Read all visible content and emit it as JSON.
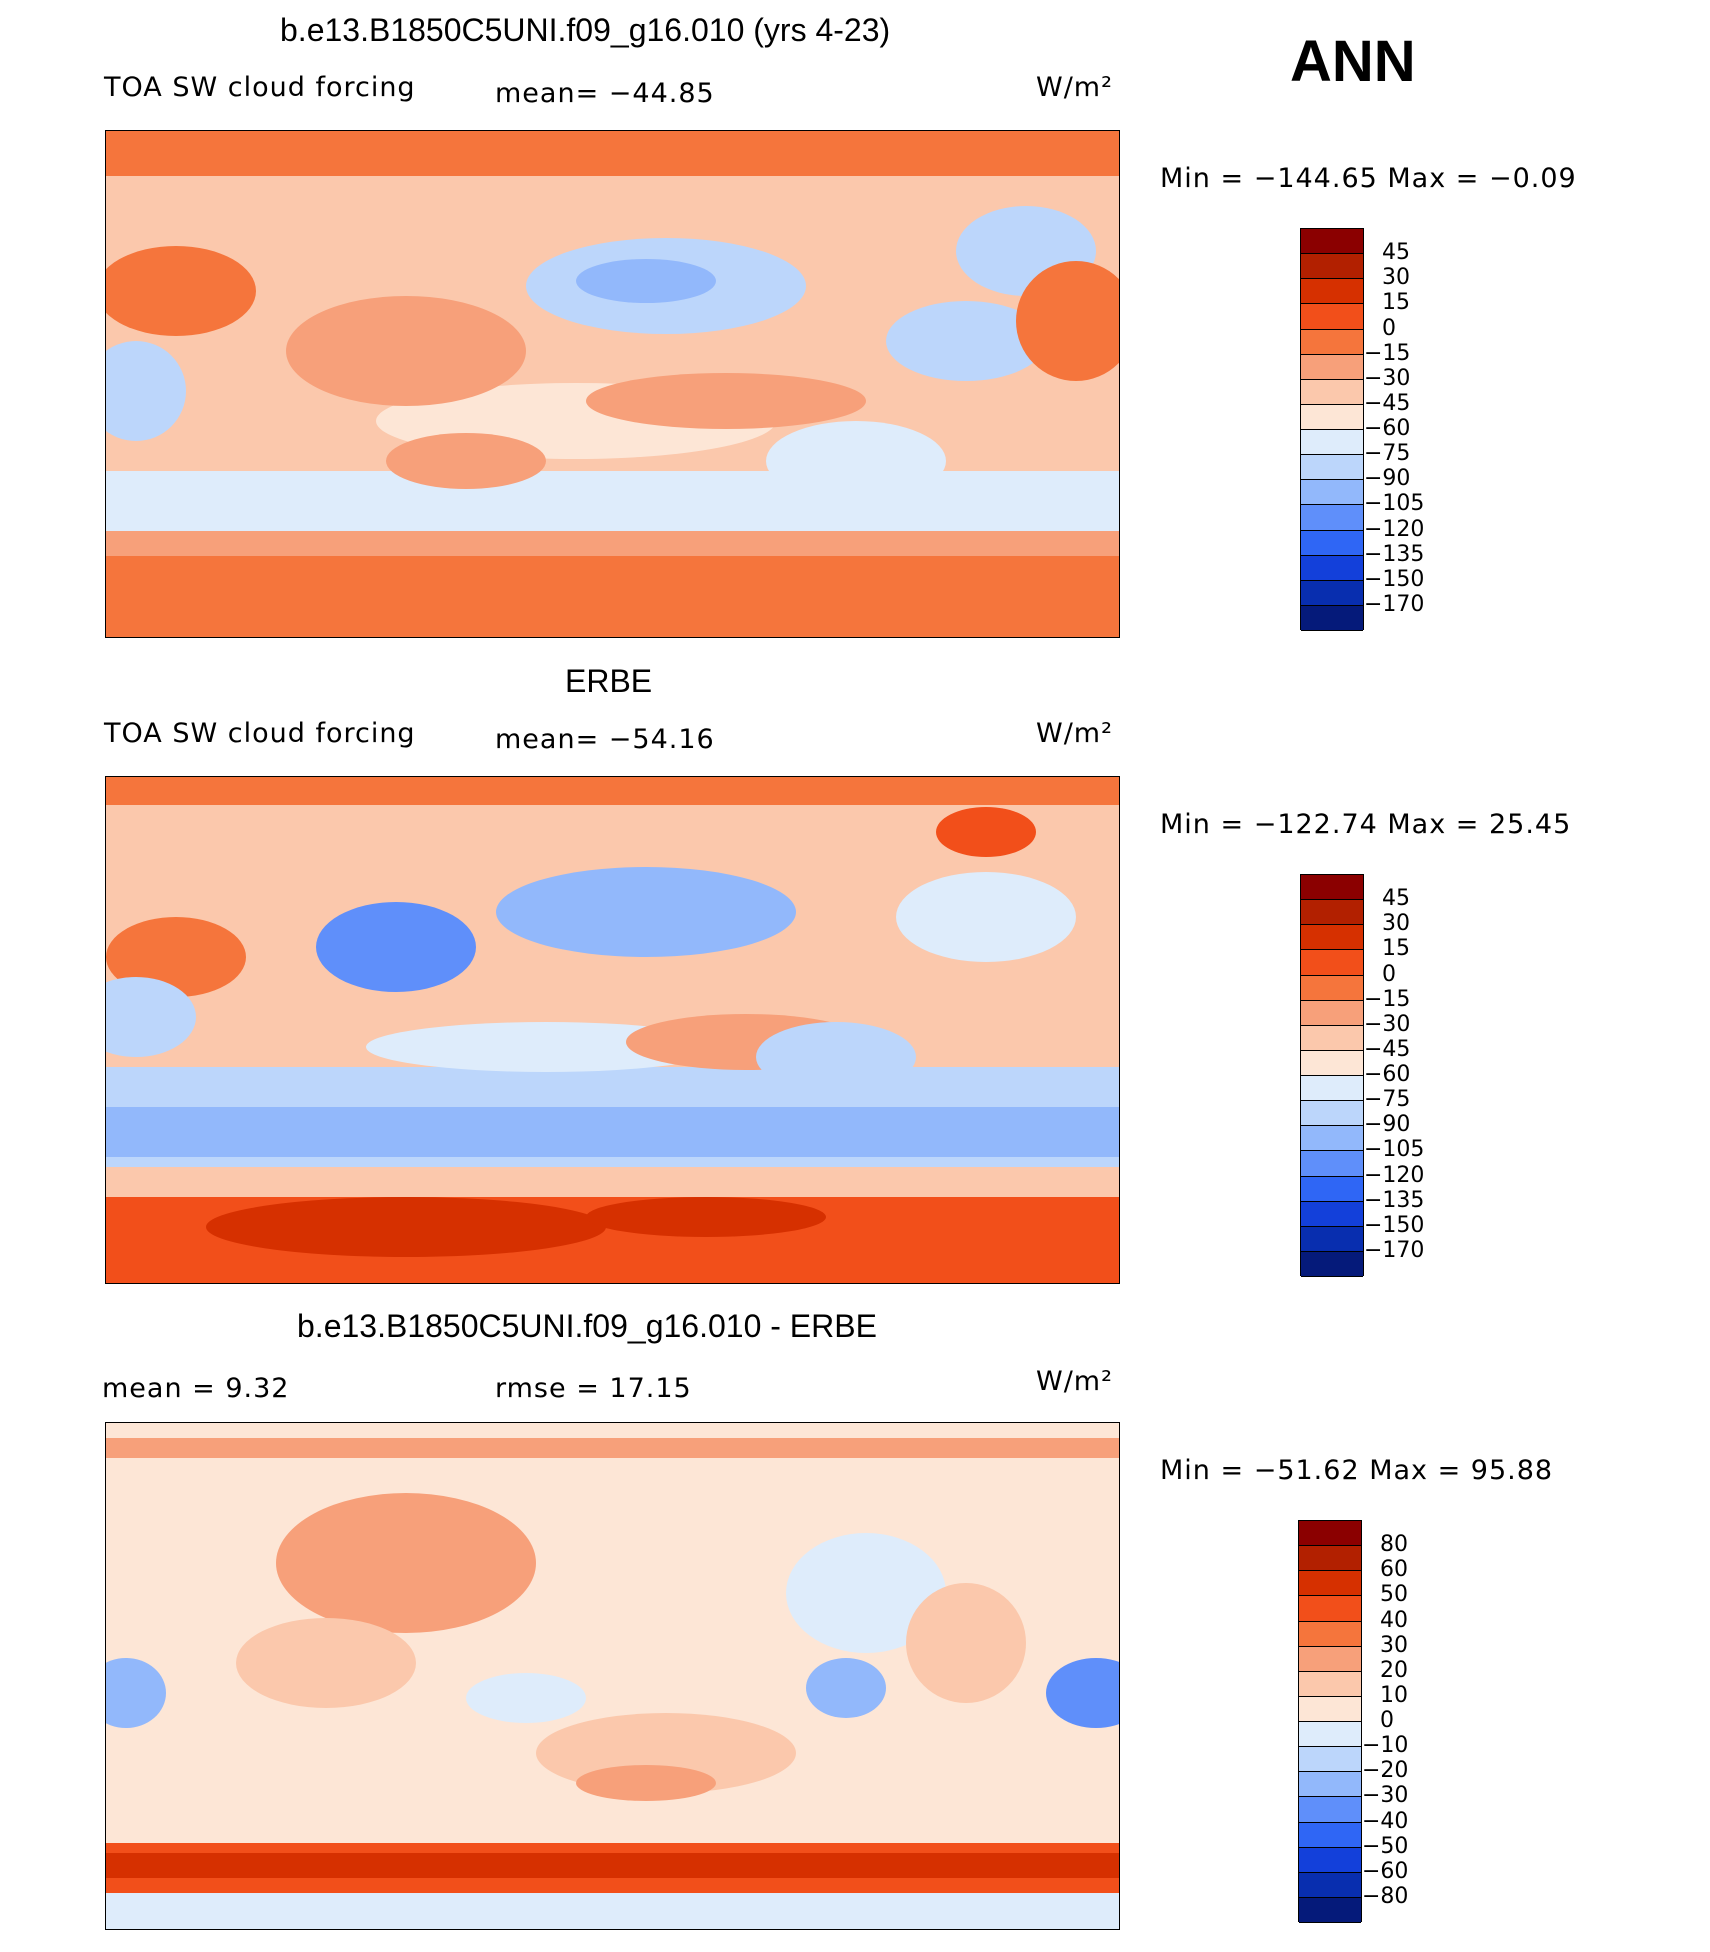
{
  "chart_data": [
    {
      "type": "heatmap",
      "title": "b.e13.B1850C5UNI.f09_g16.010 (yrs 4-23)",
      "variable": "TOA SW cloud forcing",
      "stat_left": "mean=  −44.85",
      "stat_right": "",
      "units": "W/m²",
      "minmax": "Min  =  −144.65  Max  =    −0.09",
      "levels": [
        "45",
        "30",
        "15",
        "0",
        "−15",
        "−30",
        "−45",
        "−60",
        "−75",
        "−90",
        "−105",
        "−120",
        "−135",
        "−150",
        "−170"
      ],
      "colors": [
        "#8b0000",
        "#b22000",
        "#d63000",
        "#f24f1a",
        "#f5753c",
        "#f7a07a",
        "#fbc8ac",
        "#fde6d6",
        "#deecfb",
        "#bcd6fb",
        "#92b8fb",
        "#5f8ffa",
        "#2f66f5",
        "#1340da",
        "#082eaf",
        "#051a7a"
      ]
    },
    {
      "type": "heatmap",
      "title": "ERBE",
      "variable": "TOA SW cloud forcing",
      "stat_left": "mean=  −54.16",
      "stat_right": "",
      "units": "W/m²",
      "minmax": "Min  =  −122.74  Max  =    25.45",
      "levels": [
        "45",
        "30",
        "15",
        "0",
        "−15",
        "−30",
        "−45",
        "−60",
        "−75",
        "−90",
        "−105",
        "−120",
        "−135",
        "−150",
        "−170"
      ],
      "colors": [
        "#8b0000",
        "#b22000",
        "#d63000",
        "#f24f1a",
        "#f5753c",
        "#f7a07a",
        "#fbc8ac",
        "#fde6d6",
        "#deecfb",
        "#bcd6fb",
        "#92b8fb",
        "#5f8ffa",
        "#2f66f5",
        "#1340da",
        "#082eaf",
        "#051a7a"
      ]
    },
    {
      "type": "heatmap",
      "title": "b.e13.B1850C5UNI.f09_g16.010 - ERBE",
      "variable": "mean  =      9.32",
      "stat_left": "rmse  =     17.15",
      "stat_right": "",
      "units": "W/m²",
      "minmax": "Min  =  −51.62  Max  =    95.88",
      "levels": [
        "80",
        "60",
        "50",
        "40",
        "30",
        "20",
        "10",
        "0",
        "−10",
        "−20",
        "−30",
        "−40",
        "−50",
        "−60",
        "−80"
      ],
      "colors": [
        "#8b0000",
        "#b22000",
        "#d63000",
        "#f24f1a",
        "#f5753c",
        "#f7a07a",
        "#fbc8ac",
        "#fde6d6",
        "#deecfb",
        "#bcd6fb",
        "#92b8fb",
        "#5f8ffa",
        "#2f66f5",
        "#1340da",
        "#082eaf",
        "#051a7a"
      ]
    }
  ],
  "season": "ANN"
}
